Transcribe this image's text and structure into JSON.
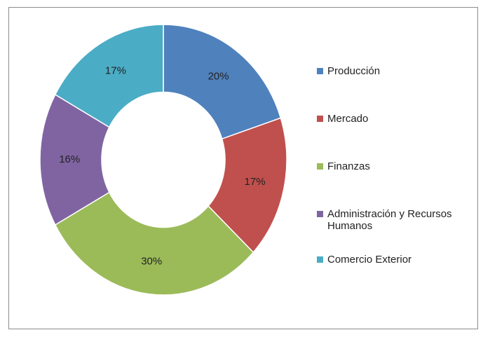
{
  "chart_data": {
    "type": "donut",
    "categories": [
      "Producción",
      "Mercado",
      "Finanzas",
      "Administración y Recursos Humanos",
      "Comercio Exterior"
    ],
    "values": [
      20,
      17,
      30,
      16,
      17
    ],
    "value_labels": [
      "20%",
      "17%",
      "30%",
      "16%",
      "17%"
    ],
    "colors": [
      "#4f81bd",
      "#c0504d",
      "#9bbb59",
      "#8064a2",
      "#4bacc6"
    ],
    "legend": "right"
  }
}
